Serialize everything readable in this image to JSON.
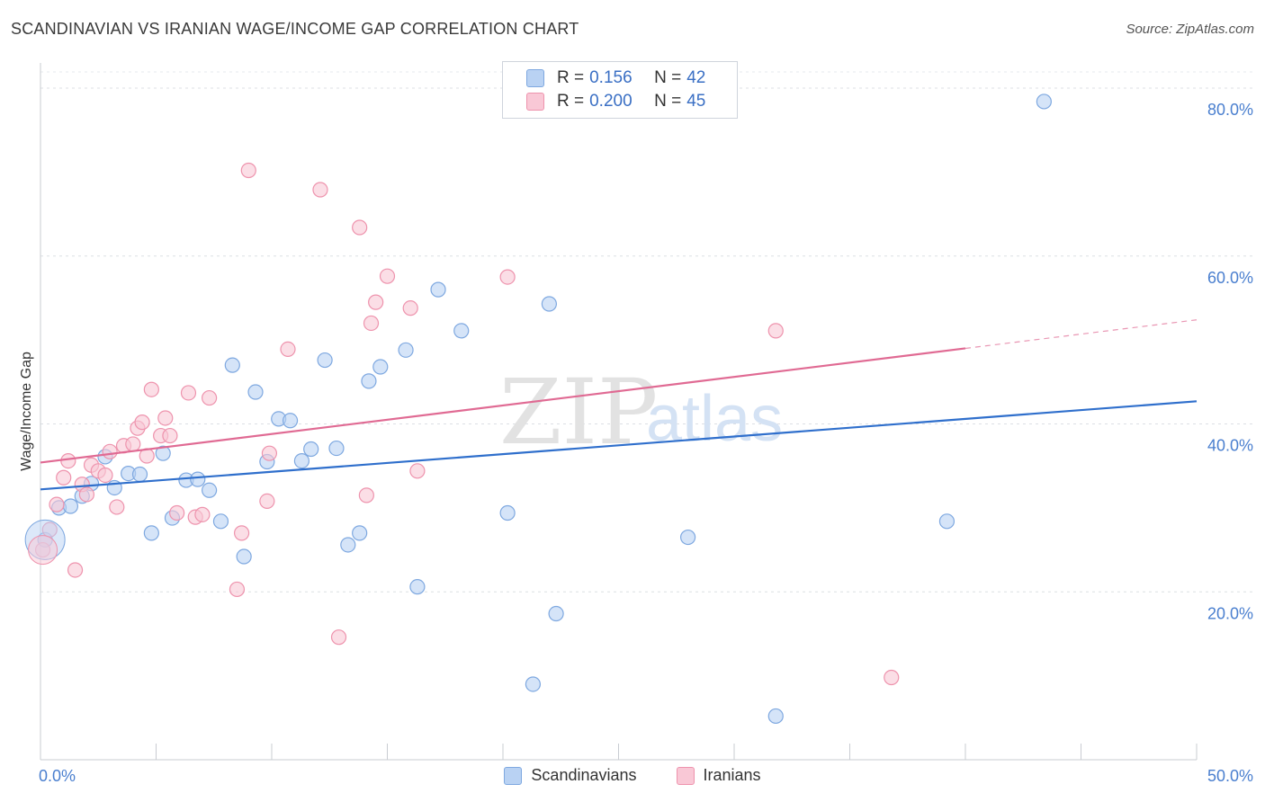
{
  "header": {
    "title": "SCANDINAVIAN VS IRANIAN WAGE/INCOME GAP CORRELATION CHART",
    "source": "Source: ZipAtlas.com"
  },
  "watermark": {
    "zip": "ZIP",
    "atlas": "atlas"
  },
  "legend": {
    "rows": [
      {
        "r_label": "R =",
        "r_value": "0.156",
        "n_label": "N =",
        "n_value": "42",
        "color": "#b9d2f3",
        "border": "#7ea8e0"
      },
      {
        "r_label": "R =",
        "r_value": "0.200",
        "n_label": "N =",
        "n_value": "45",
        "color": "#f9c8d6",
        "border": "#ee93ad"
      }
    ]
  },
  "chart_data": {
    "type": "scatter",
    "xlabel": "",
    "ylabel": "Wage/Income Gap",
    "xlim": [
      0,
      50
    ],
    "ylim": [
      0,
      83
    ],
    "x_tick_labels": [
      "0.0%",
      "50.0%"
    ],
    "y_ticks": [
      20,
      40,
      60,
      80
    ],
    "y_tick_labels": [
      "20.0%",
      "40.0%",
      "60.0%",
      "80.0%"
    ],
    "grid": true,
    "legend_position": "bottom-center",
    "series": [
      {
        "name": "Scandinavians",
        "color": "#b9d2f3",
        "stroke": "#7ea8e0",
        "line_color": "#2f6fcc",
        "trend": [
          [
            0,
            32.2
          ],
          [
            50,
            42.7
          ]
        ],
        "points": [
          [
            0.2,
            26.2
          ],
          [
            0.8,
            30.0
          ],
          [
            1.3,
            30.2
          ],
          [
            1.8,
            31.4
          ],
          [
            2.2,
            32.9
          ],
          [
            2.8,
            36.1
          ],
          [
            3.2,
            32.4
          ],
          [
            3.8,
            34.1
          ],
          [
            4.3,
            34.0
          ],
          [
            4.8,
            27.0
          ],
          [
            5.3,
            36.5
          ],
          [
            5.7,
            28.8
          ],
          [
            6.3,
            33.3
          ],
          [
            6.8,
            33.4
          ],
          [
            7.3,
            32.1
          ],
          [
            7.8,
            28.4
          ],
          [
            8.3,
            47.0
          ],
          [
            8.8,
            24.2
          ],
          [
            9.3,
            43.8
          ],
          [
            9.8,
            35.5
          ],
          [
            10.3,
            40.6
          ],
          [
            10.8,
            40.4
          ],
          [
            11.3,
            35.6
          ],
          [
            11.7,
            37.0
          ],
          [
            12.3,
            47.6
          ],
          [
            12.8,
            37.1
          ],
          [
            13.3,
            25.6
          ],
          [
            13.8,
            27.0
          ],
          [
            14.2,
            45.1
          ],
          [
            14.7,
            46.8
          ],
          [
            15.8,
            48.8
          ],
          [
            16.3,
            20.6
          ],
          [
            17.2,
            56.0
          ],
          [
            18.2,
            51.1
          ],
          [
            20.2,
            29.4
          ],
          [
            21.3,
            9.0
          ],
          [
            22.0,
            54.3
          ],
          [
            22.3,
            17.4
          ],
          [
            28.0,
            26.5
          ],
          [
            31.8,
            5.2
          ],
          [
            39.2,
            28.4
          ],
          [
            43.4,
            78.4
          ]
        ]
      },
      {
        "name": "Iranians",
        "color": "#f9c8d6",
        "stroke": "#ee93ad",
        "line_color": "#e06a93",
        "trend": [
          [
            0,
            35.4
          ],
          [
            40,
            49.0
          ]
        ],
        "trend_dashed": [
          [
            40,
            49.0
          ],
          [
            50,
            52.4
          ]
        ],
        "points": [
          [
            0.1,
            25.0
          ],
          [
            0.4,
            27.4
          ],
          [
            0.7,
            30.4
          ],
          [
            1.0,
            33.6
          ],
          [
            1.2,
            35.6
          ],
          [
            1.5,
            22.6
          ],
          [
            1.8,
            32.8
          ],
          [
            2.0,
            31.6
          ],
          [
            2.2,
            35.1
          ],
          [
            2.5,
            34.4
          ],
          [
            2.8,
            33.9
          ],
          [
            3.0,
            36.7
          ],
          [
            3.3,
            30.1
          ],
          [
            3.6,
            37.4
          ],
          [
            4.0,
            37.6
          ],
          [
            4.2,
            39.5
          ],
          [
            4.4,
            40.2
          ],
          [
            4.6,
            36.2
          ],
          [
            4.8,
            44.1
          ],
          [
            5.2,
            38.6
          ],
          [
            5.4,
            40.7
          ],
          [
            5.6,
            38.6
          ],
          [
            5.9,
            29.4
          ],
          [
            6.4,
            43.7
          ],
          [
            6.7,
            28.9
          ],
          [
            7.0,
            29.2
          ],
          [
            7.3,
            43.1
          ],
          [
            8.5,
            20.3
          ],
          [
            8.7,
            27.0
          ],
          [
            9.0,
            70.2
          ],
          [
            9.8,
            30.8
          ],
          [
            9.9,
            36.5
          ],
          [
            10.7,
            48.9
          ],
          [
            12.1,
            67.9
          ],
          [
            12.9,
            14.6
          ],
          [
            13.8,
            63.4
          ],
          [
            14.1,
            31.5
          ],
          [
            14.3,
            52.0
          ],
          [
            14.5,
            54.5
          ],
          [
            15.0,
            57.6
          ],
          [
            16.0,
            53.8
          ],
          [
            16.3,
            34.4
          ],
          [
            20.2,
            57.5
          ],
          [
            31.8,
            51.1
          ],
          [
            36.8,
            9.8
          ]
        ]
      }
    ]
  }
}
